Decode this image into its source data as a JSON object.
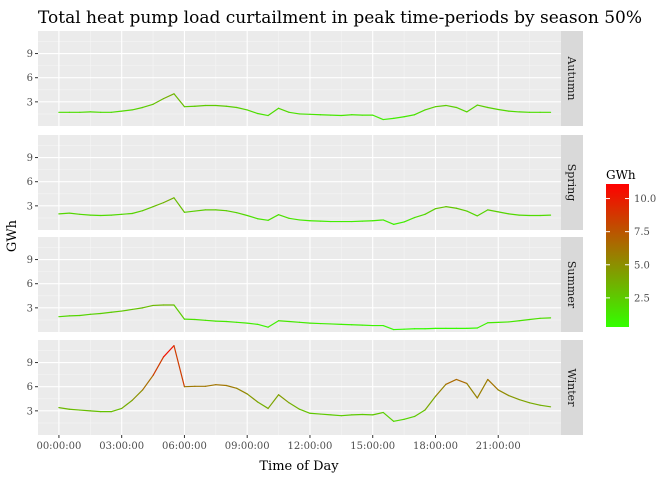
{
  "chart_data": {
    "type": "line",
    "title": "Total heat pump load curtailment in peak time-periods by season 50%",
    "xlabel": "Time of Day",
    "ylabel": "GWh",
    "x_ticks": [
      "00:00:00",
      "03:00:00",
      "06:00:00",
      "09:00:00",
      "12:00:00",
      "15:00:00",
      "18:00:00",
      "21:00:00"
    ],
    "y_ticks": [
      3,
      6,
      9
    ],
    "ylim": [
      0,
      11.8
    ],
    "x_unit": "hours",
    "xlim": [
      -1.0,
      24.0
    ],
    "x": [
      0,
      0.5,
      1,
      1.5,
      2,
      2.5,
      3,
      3.5,
      4,
      4.5,
      5,
      5.5,
      6,
      6.5,
      7,
      7.5,
      8,
      8.5,
      9,
      9.5,
      10,
      10.5,
      11,
      11.5,
      12,
      12.5,
      13,
      13.5,
      14,
      14.5,
      15,
      15.5,
      16,
      16.5,
      17,
      17.5,
      18,
      18.5,
      19,
      19.5,
      20,
      20.5,
      21,
      21.5,
      22,
      22.5,
      23,
      23.5
    ],
    "series": [
      {
        "name": "Autumn",
        "values": [
          1.7,
          1.7,
          1.7,
          1.75,
          1.7,
          1.7,
          1.85,
          2.0,
          2.3,
          2.7,
          3.4,
          4.0,
          2.4,
          2.45,
          2.55,
          2.55,
          2.45,
          2.3,
          2.0,
          1.55,
          1.3,
          2.2,
          1.7,
          1.5,
          1.45,
          1.4,
          1.35,
          1.3,
          1.4,
          1.35,
          1.35,
          0.8,
          0.95,
          1.15,
          1.4,
          2.0,
          2.4,
          2.55,
          2.3,
          1.75,
          2.6,
          2.3,
          2.05,
          1.85,
          1.75,
          1.7,
          1.7,
          1.7
        ]
      },
      {
        "name": "Spring",
        "values": [
          2.0,
          2.1,
          1.95,
          1.85,
          1.8,
          1.85,
          1.95,
          2.05,
          2.4,
          2.9,
          3.4,
          4.0,
          2.2,
          2.35,
          2.5,
          2.5,
          2.4,
          2.15,
          1.8,
          1.4,
          1.2,
          1.9,
          1.45,
          1.25,
          1.15,
          1.1,
          1.05,
          1.05,
          1.05,
          1.1,
          1.15,
          1.25,
          0.7,
          1.0,
          1.55,
          1.95,
          2.65,
          2.9,
          2.7,
          2.35,
          1.75,
          2.5,
          2.25,
          2.0,
          1.85,
          1.8,
          1.8,
          1.85
        ]
      },
      {
        "name": "Summer",
        "values": [
          1.9,
          2.0,
          2.05,
          2.2,
          2.3,
          2.45,
          2.6,
          2.8,
          3.0,
          3.3,
          3.35,
          3.35,
          1.6,
          1.55,
          1.45,
          1.35,
          1.3,
          1.2,
          1.1,
          0.95,
          0.6,
          1.4,
          1.3,
          1.2,
          1.1,
          1.05,
          1.0,
          0.95,
          0.9,
          0.85,
          0.8,
          0.8,
          0.3,
          0.35,
          0.4,
          0.4,
          0.45,
          0.45,
          0.45,
          0.45,
          0.5,
          1.15,
          1.2,
          1.25,
          1.4,
          1.55,
          1.7,
          1.75
        ]
      },
      {
        "name": "Winter",
        "values": [
          3.4,
          3.2,
          3.1,
          3.0,
          2.9,
          2.9,
          3.3,
          4.3,
          5.6,
          7.4,
          9.7,
          11.1,
          6.0,
          6.05,
          6.05,
          6.25,
          6.15,
          5.8,
          5.1,
          4.1,
          3.3,
          5.0,
          4.0,
          3.2,
          2.7,
          2.6,
          2.5,
          2.4,
          2.5,
          2.55,
          2.5,
          2.8,
          1.7,
          1.95,
          2.3,
          3.1,
          4.8,
          6.3,
          6.9,
          6.4,
          4.6,
          6.9,
          5.6,
          4.9,
          4.4,
          4.0,
          3.7,
          3.5
        ]
      }
    ],
    "colorbar": {
      "title": "GWh",
      "breaks": [
        2.5,
        5.0,
        7.5,
        10.0
      ],
      "labels": [
        "2.5",
        "5.0",
        "7.5",
        "10.0"
      ],
      "range": [
        0.3,
        11.1
      ],
      "colors": [
        "#33ff00",
        "#ff0000"
      ]
    },
    "facet": "right-strips",
    "grid": true,
    "legend_position": "right"
  }
}
